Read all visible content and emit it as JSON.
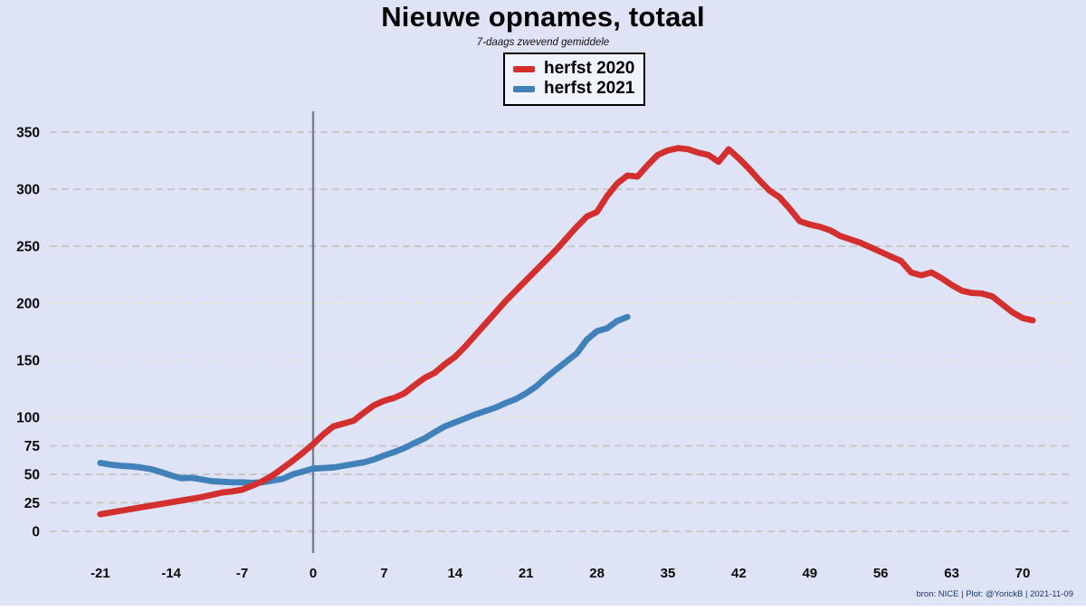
{
  "page": {
    "background_color": "#dee4f6",
    "footer": "bron: NICE  | Plot: @YorickB |  2021-11-09",
    "footer_color": "#1c3668"
  },
  "chart_data": {
    "type": "line",
    "title": "Nieuwe opnames, totaal",
    "subtitle": "7-daags zwevend gemiddele",
    "xlabel": "",
    "ylabel": "",
    "xlim": [
      -26,
      75
    ],
    "ylim": [
      0,
      365
    ],
    "grid": true,
    "legend_position": "top-center",
    "vline_x": 0,
    "vline_color": "#78808f",
    "grid_colors": {
      "gray": "#c8c8c8",
      "green": "#e5edc9"
    },
    "x_ticks": [
      -21,
      -14,
      -7,
      0,
      7,
      14,
      21,
      28,
      35,
      42,
      49,
      56,
      63,
      70
    ],
    "y_ticks": [
      {
        "value": 0,
        "grid": "gray"
      },
      {
        "value": 25,
        "grid": "gray"
      },
      {
        "value": 50,
        "grid": "gray"
      },
      {
        "value": 75,
        "grid": "gray"
      },
      {
        "value": 100,
        "grid": "green"
      },
      {
        "value": 150,
        "grid": "green"
      },
      {
        "value": 200,
        "grid": "green"
      },
      {
        "value": 250,
        "grid": "gray"
      },
      {
        "value": 300,
        "grid": "gray"
      },
      {
        "value": 350,
        "grid": "gray"
      }
    ],
    "series": [
      {
        "name": "herfst 2020",
        "color": "#d32f2e",
        "x_start": -21,
        "x_step": 1,
        "values": [
          15,
          16.5,
          18,
          19.5,
          21,
          22.5,
          24,
          25.5,
          27,
          28.5,
          30,
          32,
          34,
          35,
          36.5,
          40,
          44,
          49,
          55.5,
          62,
          69,
          76.5,
          85,
          92,
          94.5,
          97,
          104,
          110.5,
          114.5,
          117,
          121,
          128,
          134.5,
          139,
          146.5,
          153,
          162,
          172,
          182,
          192,
          202,
          211,
          220,
          229,
          238,
          247,
          257,
          267,
          276,
          280,
          294,
          305,
          312,
          311,
          321,
          330,
          334,
          336,
          335,
          332,
          330,
          324,
          335,
          327,
          318,
          308,
          299,
          293,
          283,
          272,
          269,
          267,
          264,
          259,
          256,
          253,
          249,
          245,
          241,
          237,
          227,
          224.5,
          227,
          222,
          216,
          211,
          209,
          208.5,
          206,
          199,
          192,
          187,
          185
        ]
      },
      {
        "name": "herfst 2021",
        "color": "#3f81b8",
        "x_start": -21,
        "x_step": 1,
        "values": [
          60,
          58.5,
          57.5,
          57,
          56,
          54.5,
          52,
          49,
          46.5,
          47,
          45.5,
          44,
          43.5,
          43,
          43,
          42.5,
          43,
          44.5,
          46,
          50,
          52.5,
          55,
          55.5,
          56,
          57.5,
          59,
          60.5,
          63,
          66.5,
          69.5,
          73,
          77.5,
          81.5,
          87,
          92,
          95.5,
          99,
          102.5,
          105.5,
          108.5,
          112.5,
          116,
          121,
          127,
          135,
          142,
          149,
          156,
          168,
          175.5,
          178,
          184.5,
          188
        ]
      }
    ]
  }
}
